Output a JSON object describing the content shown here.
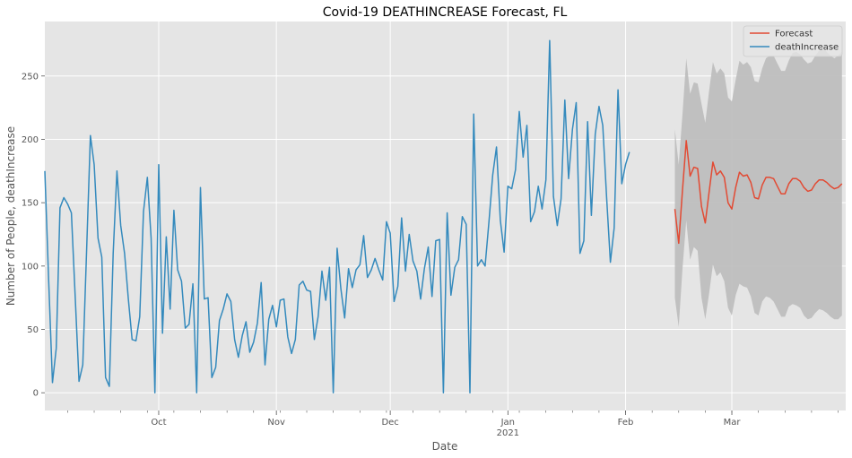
{
  "chart_data": {
    "type": "line",
    "title": "Covid-19 DEATHINCREASE Forecast, FL",
    "xlabel": "Date",
    "ylabel": "Number of People, deathIncrease",
    "ylim": [
      -14,
      293
    ],
    "xlim": [
      "2020-09-01",
      "2021-03-31"
    ],
    "yticks": [
      0,
      50,
      100,
      150,
      200,
      250
    ],
    "xticks": [
      {
        "date": "2020-10-01",
        "label": "Oct",
        "sublabel": ""
      },
      {
        "date": "2020-11-01",
        "label": "Nov",
        "sublabel": ""
      },
      {
        "date": "2020-12-01",
        "label": "Dec",
        "sublabel": ""
      },
      {
        "date": "2021-01-01",
        "label": "Jan",
        "sublabel": "2021"
      },
      {
        "date": "2021-02-01",
        "label": "Feb",
        "sublabel": ""
      },
      {
        "date": "2021-03-01",
        "label": "Mar",
        "sublabel": ""
      }
    ],
    "grid": true,
    "legend_position": "top-right",
    "series": [
      {
        "name": "Forecast",
        "color": "#E24A33",
        "start": "2021-02-14",
        "values": [
          145,
          118,
          160,
          199,
          171,
          178,
          177,
          147,
          134,
          158,
          182,
          172,
          175,
          170,
          150,
          145,
          162,
          174,
          171,
          172,
          166,
          154,
          153,
          164,
          170,
          170,
          169,
          163,
          157,
          157,
          165,
          169,
          169,
          167,
          162,
          159,
          160,
          165,
          168,
          168,
          166,
          163,
          161,
          162,
          165
        ]
      },
      {
        "name": "deathIncrease",
        "color": "#348ABD",
        "start": "2020-09-01",
        "values": [
          175,
          90,
          8,
          35,
          146,
          154,
          149,
          142,
          75,
          9,
          22,
          113,
          203,
          180,
          122,
          107,
          12,
          5,
          110,
          175,
          132,
          110,
          74,
          42,
          41,
          60,
          143,
          170,
          122,
          0,
          180,
          47,
          123,
          66,
          144,
          97,
          88,
          51,
          54,
          86,
          0,
          162,
          74,
          75,
          12,
          20,
          57,
          66,
          78,
          72,
          42,
          28,
          45,
          56,
          32,
          40,
          55,
          87,
          22,
          58,
          69,
          52,
          73,
          74,
          44,
          31,
          42,
          85,
          88,
          81,
          80,
          42,
          60,
          96,
          73,
          99,
          0,
          114,
          82,
          59,
          98,
          83,
          97,
          101,
          124,
          91,
          97,
          106,
          97,
          89,
          135,
          126,
          72,
          84,
          138,
          96,
          125,
          104,
          96,
          74,
          98,
          115,
          76,
          120,
          121,
          0,
          142,
          77,
          99,
          105,
          139,
          133,
          0,
          220,
          100,
          105,
          100,
          135,
          172,
          194,
          136,
          111,
          163,
          161,
          176,
          222,
          186,
          211,
          135,
          143,
          163,
          145,
          168,
          278,
          155,
          132,
          153,
          231,
          169,
          208,
          229,
          110,
          120,
          214,
          140,
          204,
          226,
          211,
          154,
          103,
          130,
          239,
          165,
          180,
          190
        ]
      }
    ],
    "confidence_band": {
      "start": "2021-02-14",
      "upper": [
        208,
        180,
        220,
        264,
        236,
        245,
        244,
        228,
        213,
        238,
        261,
        252,
        256,
        252,
        233,
        230,
        247,
        262,
        259,
        261,
        257,
        246,
        245,
        256,
        264,
        266,
        266,
        260,
        254,
        254,
        262,
        268,
        269,
        267,
        263,
        260,
        261,
        266,
        270,
        271,
        269,
        266,
        264,
        266,
        269
      ],
      "lower": [
        75,
        52,
        98,
        136,
        105,
        115,
        112,
        75,
        58,
        78,
        101,
        92,
        95,
        88,
        67,
        61,
        77,
        86,
        84,
        83,
        76,
        63,
        61,
        72,
        76,
        75,
        72,
        66,
        60,
        60,
        68,
        70,
        69,
        67,
        61,
        58,
        59,
        63,
        66,
        65,
        63,
        60,
        58,
        58,
        61
      ],
      "color": "#BBBBBB"
    }
  }
}
